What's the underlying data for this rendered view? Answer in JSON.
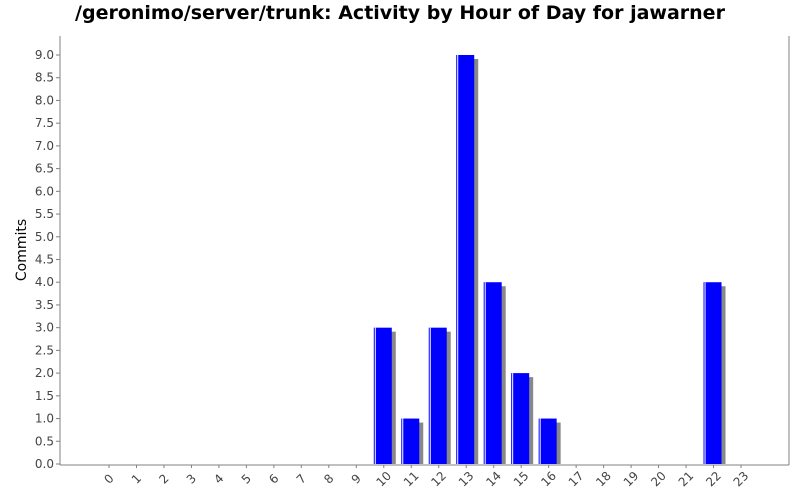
{
  "chart_data": {
    "type": "bar",
    "title": "/geronimo/server/trunk: Activity by Hour of Day for jawarner",
    "xlabel": "",
    "ylabel": "Commits",
    "categories": [
      "0",
      "1",
      "2",
      "3",
      "4",
      "5",
      "6",
      "7",
      "8",
      "9",
      "10",
      "11",
      "12",
      "13",
      "14",
      "15",
      "16",
      "17",
      "18",
      "19",
      "20",
      "21",
      "22",
      "23"
    ],
    "values": [
      0,
      0,
      0,
      0,
      0,
      0,
      0,
      0,
      0,
      0,
      3,
      1,
      3,
      9,
      4,
      2,
      1,
      0,
      0,
      0,
      0,
      0,
      4,
      0
    ],
    "ylim": [
      0,
      9.0
    ],
    "ytick_step": 0.5,
    "grid": false,
    "legend": "none",
    "colors": {
      "bar": "#0000ff",
      "bar_shadow": "#888888",
      "axis": "#808080"
    }
  }
}
